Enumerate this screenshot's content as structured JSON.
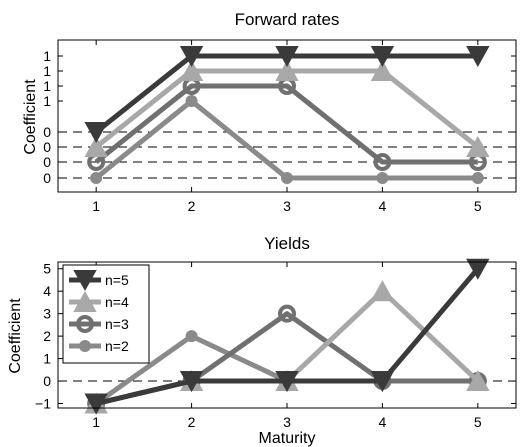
{
  "chart_data": [
    {
      "type": "line",
      "title": "Forward rates",
      "xlabel": "",
      "ylabel": "Coefficient",
      "x": [
        1,
        2,
        3,
        4,
        5
      ],
      "x_tick_labels": [
        "1",
        "2",
        "3",
        "4",
        "5"
      ],
      "y_tick_labels": [
        "0",
        "0",
        "0",
        "0",
        "1",
        "1",
        "1",
        "1"
      ],
      "series": [
        {
          "name": "n=5",
          "marker": "triangle-down",
          "color": "#3a3a3a",
          "values": [
            1.15,
            2.0,
            2.0,
            2.0,
            2.0
          ]
        },
        {
          "name": "n=4",
          "marker": "triangle-up",
          "color": "#a8a8a8",
          "values": [
            1.07,
            1.9,
            1.9,
            1.9,
            1.07
          ]
        },
        {
          "name": "n=3",
          "marker": "ring",
          "color": "#707070",
          "values": [
            1.0,
            1.8,
            1.8,
            1.0,
            1.0
          ]
        },
        {
          "name": "n=2",
          "marker": "dot",
          "color": "#8a8a8a",
          "values": [
            0.9,
            1.7,
            0.9,
            0.9,
            0.9
          ]
        }
      ],
      "xlim": [
        0.6,
        5.4
      ],
      "grid": false,
      "dashed_reference_lines": true
    },
    {
      "type": "line",
      "title": "Yields",
      "xlabel": "Maturity",
      "ylabel": "Coefficient",
      "x": [
        1,
        2,
        3,
        4,
        5
      ],
      "x_tick_labels": [
        "1",
        "2",
        "3",
        "4",
        "5"
      ],
      "y_tick_labels": [
        "−1",
        "0",
        "1",
        "2",
        "3",
        "4",
        "5"
      ],
      "series": [
        {
          "name": "n=5",
          "marker": "triangle-down",
          "color": "#3a3a3a",
          "values": [
            -1,
            0,
            0,
            0,
            5
          ]
        },
        {
          "name": "n=4",
          "marker": "triangle-up",
          "color": "#a8a8a8",
          "values": [
            -1,
            0,
            0,
            4,
            0
          ]
        },
        {
          "name": "n=3",
          "marker": "ring",
          "color": "#707070",
          "values": [
            -1,
            0,
            3,
            0,
            0
          ]
        },
        {
          "name": "n=2",
          "marker": "dot",
          "color": "#8a8a8a",
          "values": [
            -1,
            2,
            0,
            0,
            0
          ]
        }
      ],
      "xlim": [
        0.6,
        5.4
      ],
      "ylim": [
        -1.2,
        5.3
      ],
      "legend": [
        "n=5",
        "n=4",
        "n=3",
        "n=2"
      ],
      "legend_position": "top-left",
      "grid": false,
      "dashed_reference_lines": true
    }
  ]
}
